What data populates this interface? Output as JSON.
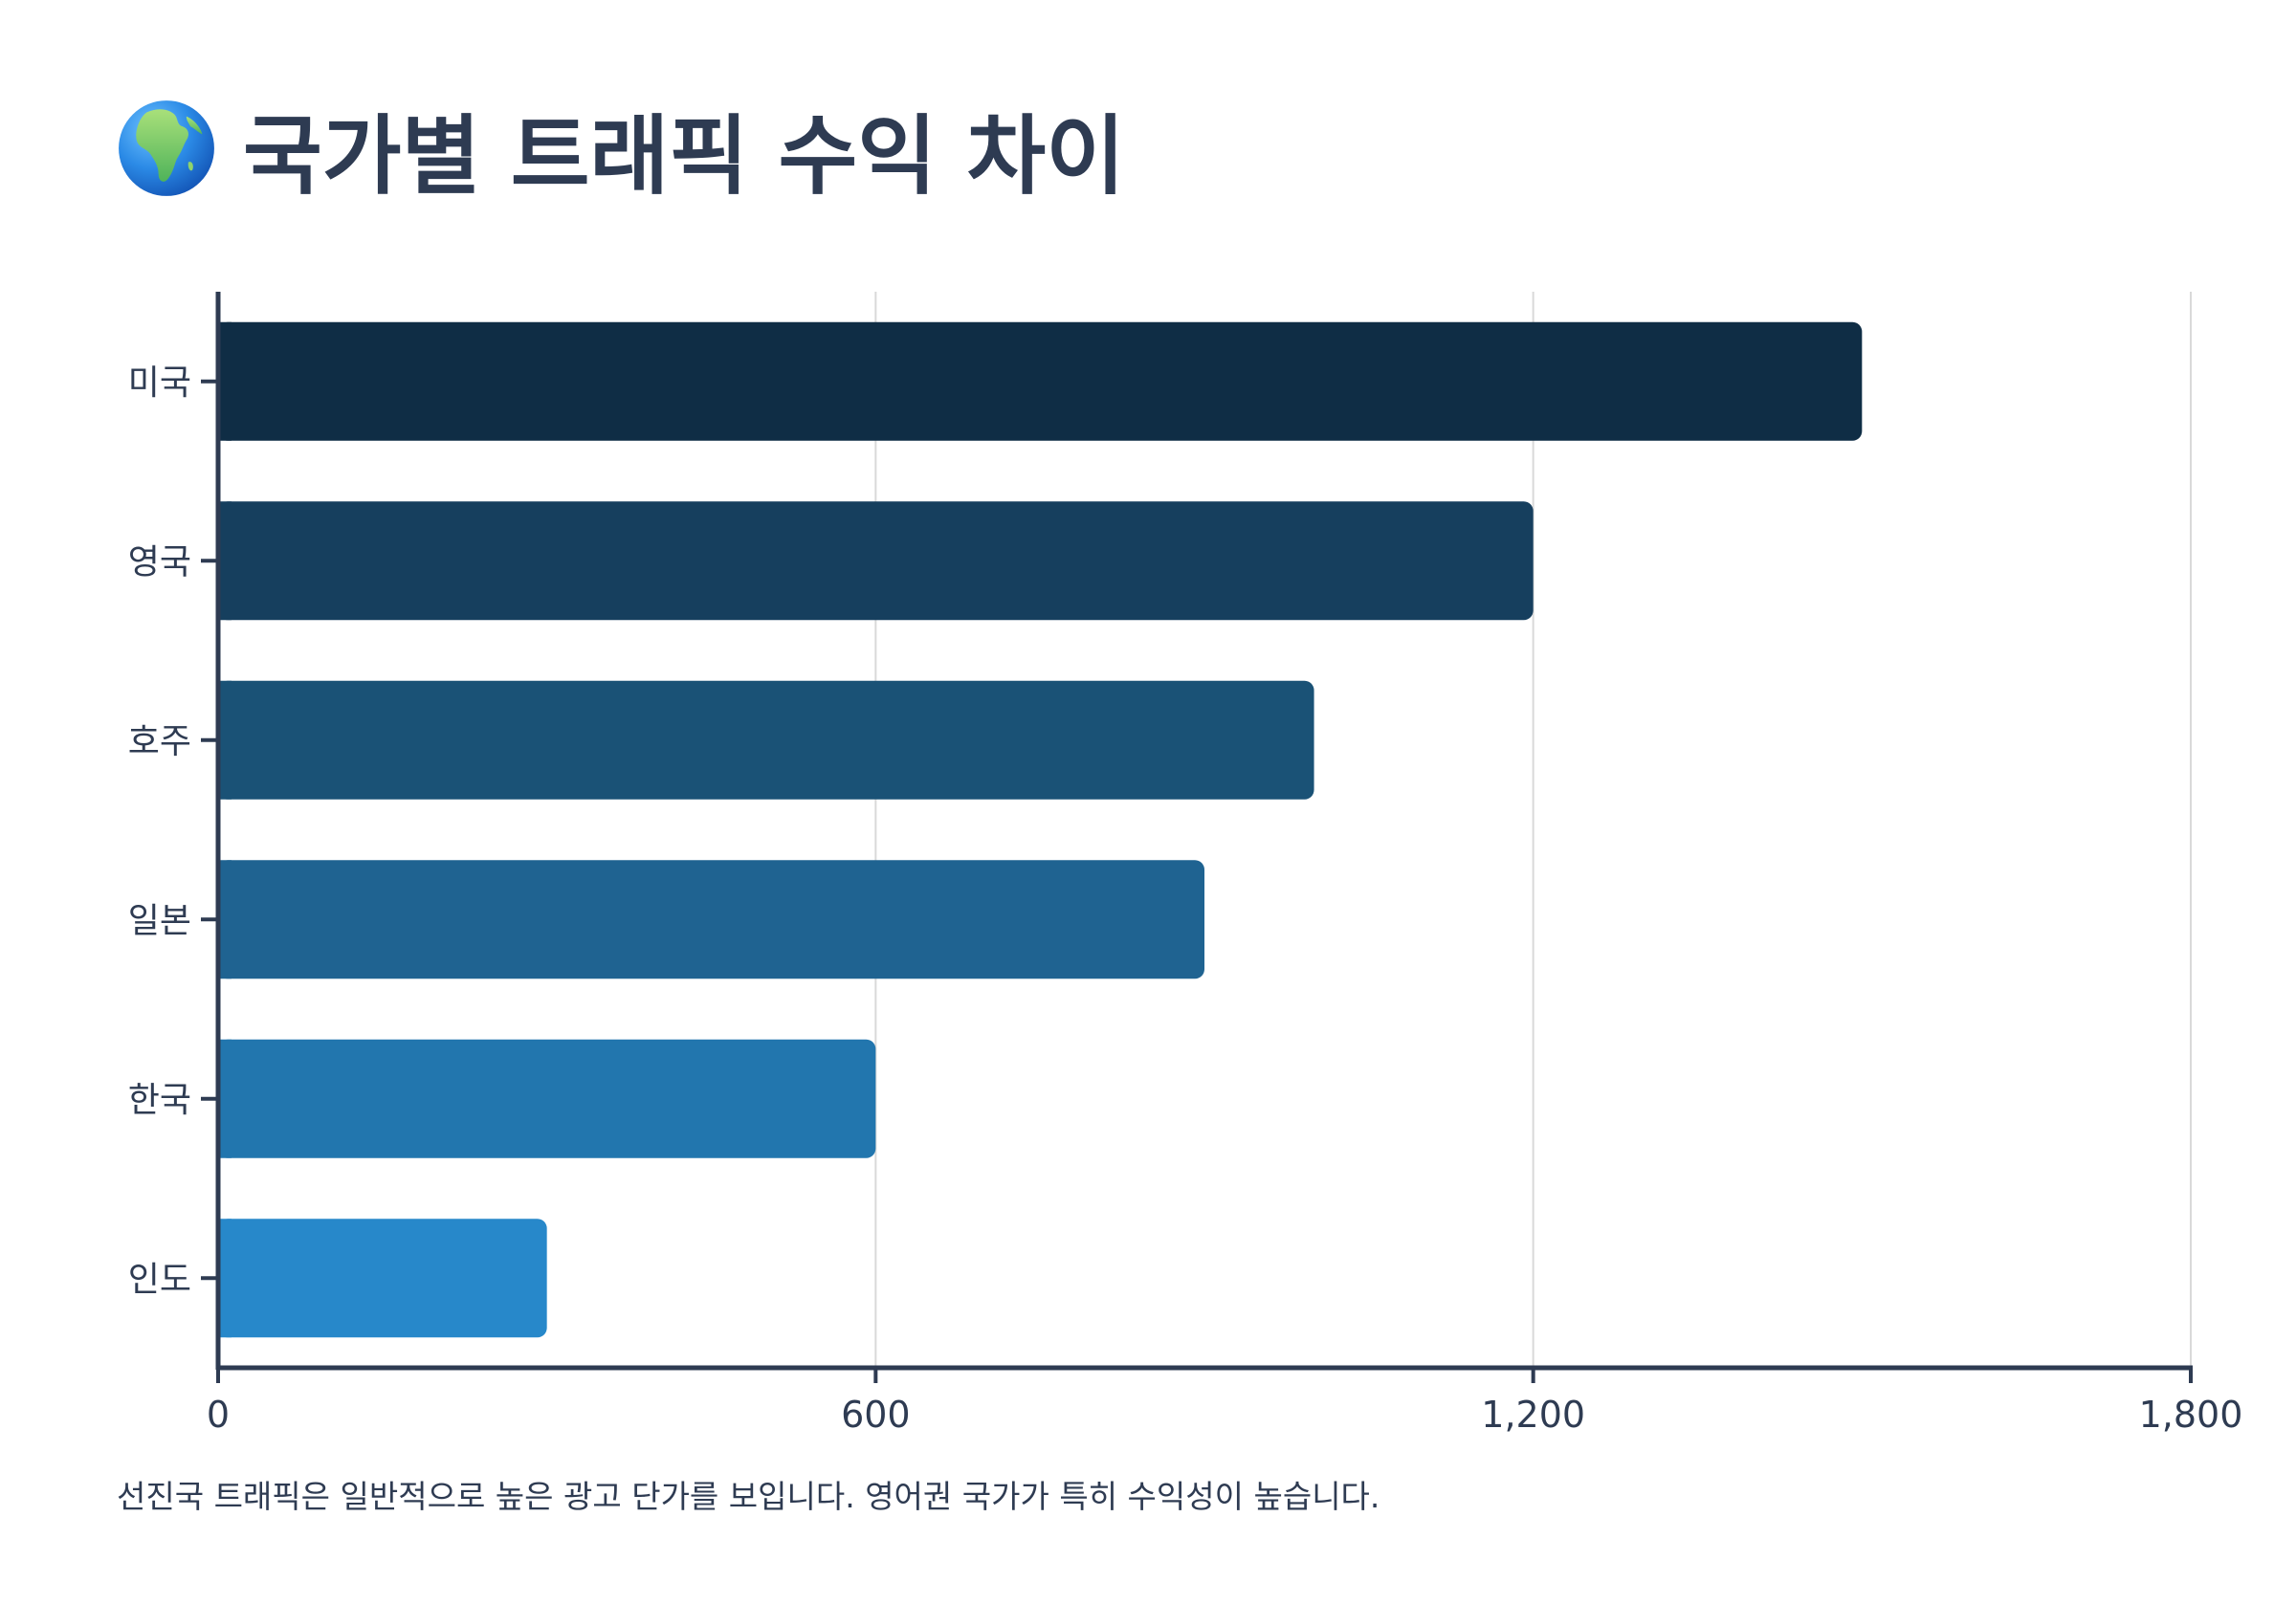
{
  "page": {
    "title": "국가별 트래픽 수익 차이",
    "title_icon": "globe-africa-icon",
    "note": "선진국 트래픽은 일반적으로 높은 광고 단가를 보입니다. 영어권 국가가 특히 수익성이 높습니다."
  },
  "chart_data": {
    "type": "bar",
    "orientation": "horizontal",
    "title": "국가별 트래픽 수익 차이",
    "categories": [
      "미국",
      "영국",
      "호주",
      "일본",
      "한국",
      "인도"
    ],
    "values": [
      1500,
      1200,
      1000,
      900,
      600,
      300
    ],
    "colors": [
      "#0f2d45",
      "#163f5e",
      "#1a5276",
      "#1f6391",
      "#2276ae",
      "#2788ca"
    ],
    "xlim": [
      0,
      1800
    ],
    "xticks": [
      0,
      600,
      1200,
      1800
    ],
    "xtick_labels": [
      "0",
      "600",
      "1,200",
      "1,800"
    ],
    "xlabel": "",
    "ylabel": "",
    "grid": "vertical",
    "legend": "none"
  }
}
